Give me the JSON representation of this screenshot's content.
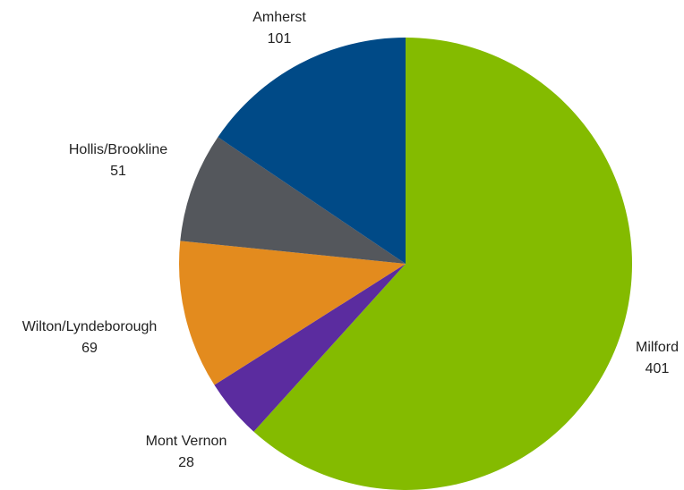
{
  "chart_data": {
    "type": "pie",
    "title": "",
    "start_angle_deg": 0,
    "direction": "clockwise",
    "slices": [
      {
        "label": "Milford",
        "value": 401,
        "color": "#84BB00"
      },
      {
        "label": "Mont Vernon",
        "value": 28,
        "color": "#5B2C9F"
      },
      {
        "label": "Wilton/Lyndeborough",
        "value": 69,
        "color": "#E38B1E"
      },
      {
        "label": "Hollis/Brookline",
        "value": 51,
        "color": "#54575C"
      },
      {
        "label": "Amherst",
        "value": 101,
        "color": "#004A87"
      }
    ],
    "legend": "none",
    "data_labels": "outside"
  }
}
